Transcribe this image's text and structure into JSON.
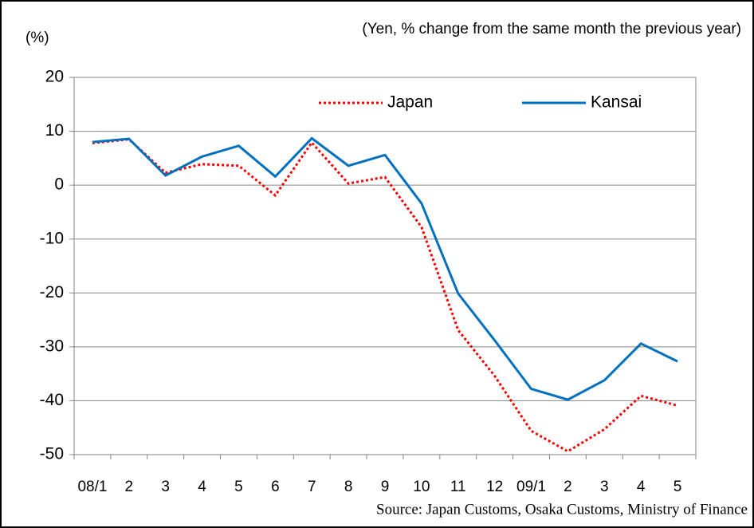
{
  "chart_data": {
    "type": "line",
    "subtitle": "(Yen, % change from the same month the previous year)",
    "y_label": "(%)",
    "source": "Source: Japan Customs, Osaka Customs, Ministry of Finance",
    "categories": [
      "08/1",
      "2",
      "3",
      "4",
      "5",
      "6",
      "7",
      "8",
      "9",
      "10",
      "11",
      "12",
      "09/1",
      "2",
      "3",
      "4",
      "5"
    ],
    "series": [
      {
        "name": "Japan",
        "color": "#ff0000",
        "line_style": "dotted",
        "values": [
          7.8,
          8.5,
          2.3,
          3.9,
          3.6,
          -1.9,
          7.9,
          0.3,
          1.5,
          -7.8,
          -26.9,
          -35.4,
          -45.6,
          -49.4,
          -45.3,
          -39.1,
          -40.9
        ]
      },
      {
        "name": "Kansai",
        "color": "#0070c0",
        "line_style": "solid",
        "values": [
          8.0,
          8.6,
          1.8,
          5.3,
          7.3,
          1.6,
          8.7,
          3.6,
          5.6,
          -3.4,
          -20.1,
          -28.8,
          -37.8,
          -39.8,
          -36.2,
          -29.4,
          -32.7
        ]
      }
    ],
    "ylim": [
      -50,
      20
    ],
    "yticks": [
      20,
      10,
      0,
      -10,
      -20,
      -30,
      -40,
      -50
    ],
    "grid": true
  }
}
